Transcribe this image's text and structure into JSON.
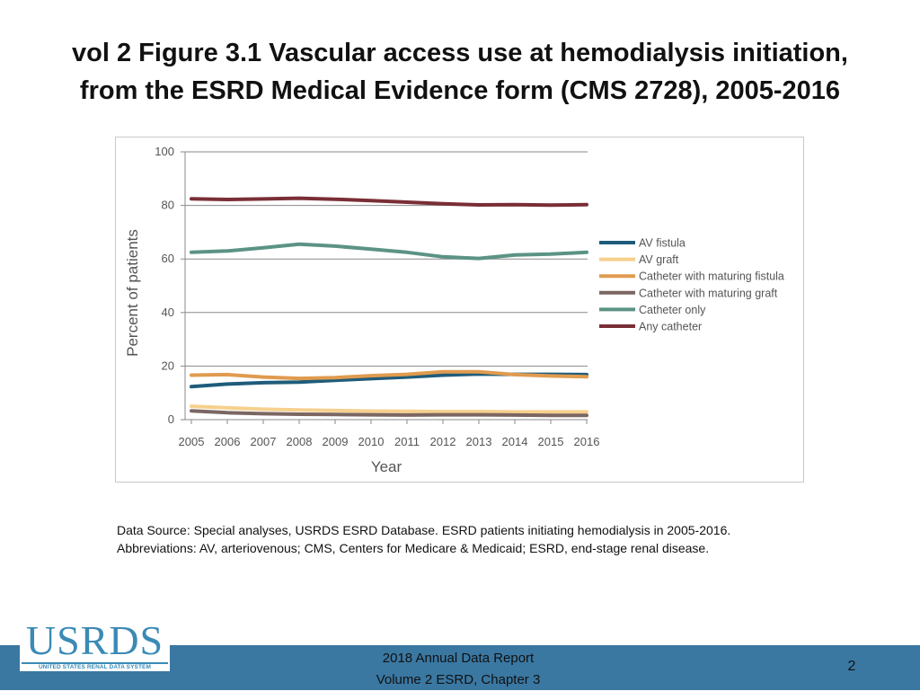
{
  "slide": {
    "title_line1": "vol 2 Figure 3.1 Vascular access use at hemodialysis initiation,",
    "title_line2": "from the ESRD Medical Evidence form (CMS 2728), 2005-2016",
    "source_line1": "Data Source: Special analyses, USRDS ESRD Database. ESRD patients initiating hemodialysis in 2005-2016.",
    "source_line2": "Abbreviations: AV, arteriovenous; CMS, Centers for Medicare & Medicaid; ESRD, end-stage renal disease.",
    "logo_text": "USRDS",
    "logo_subtext": "UNITED STATES RENAL DATA SYSTEM",
    "report_line1": "2018 Annual Data Report",
    "report_line2": "Volume 2 ESRD, Chapter 3",
    "page_number": "2",
    "footer_color": "#3a78a2",
    "logo_color": "#3a8ab5"
  },
  "chart_data": {
    "type": "line",
    "xlabel": "Year",
    "ylabel": "Percent of patients",
    "x": [
      "2005",
      "2006",
      "2007",
      "2008",
      "2009",
      "2010",
      "2011",
      "2012",
      "2013",
      "2014",
      "2015",
      "2016"
    ],
    "ylim": [
      0,
      100
    ],
    "yticks": [
      "0",
      "20",
      "40",
      "60",
      "80",
      "100"
    ],
    "grid": true,
    "legend_position": "right",
    "series": [
      {
        "name": "AV fistula",
        "color": "#1f5c7a",
        "values": [
          12.3,
          13.3,
          13.8,
          14.0,
          14.7,
          15.3,
          15.9,
          16.6,
          17.0,
          16.9,
          16.9,
          16.8
        ]
      },
      {
        "name": "AV graft",
        "color": "#f6d08e",
        "values": [
          5.0,
          4.4,
          3.9,
          3.6,
          3.4,
          3.2,
          3.1,
          3.0,
          3.0,
          2.9,
          2.9,
          2.9
        ]
      },
      {
        "name": "Catheter with maturing fistula",
        "color": "#e09b4f",
        "values": [
          16.6,
          16.8,
          15.9,
          15.4,
          15.7,
          16.4,
          16.9,
          17.9,
          17.9,
          16.8,
          16.3,
          16.0
        ]
      },
      {
        "name": "Catheter with maturing graft",
        "color": "#7b6661",
        "values": [
          3.3,
          2.6,
          2.2,
          2.0,
          1.9,
          1.8,
          1.7,
          1.8,
          1.8,
          1.7,
          1.6,
          1.6
        ]
      },
      {
        "name": "Catheter only",
        "color": "#5b9384",
        "values": [
          62.5,
          63.0,
          64.2,
          65.5,
          64.8,
          63.7,
          62.5,
          60.8,
          60.2,
          61.5,
          61.8,
          62.5
        ]
      },
      {
        "name": "Any catheter",
        "color": "#7a2e35",
        "values": [
          82.5,
          82.2,
          82.4,
          82.7,
          82.3,
          81.8,
          81.2,
          80.6,
          80.2,
          80.3,
          80.1,
          80.3
        ]
      }
    ]
  }
}
